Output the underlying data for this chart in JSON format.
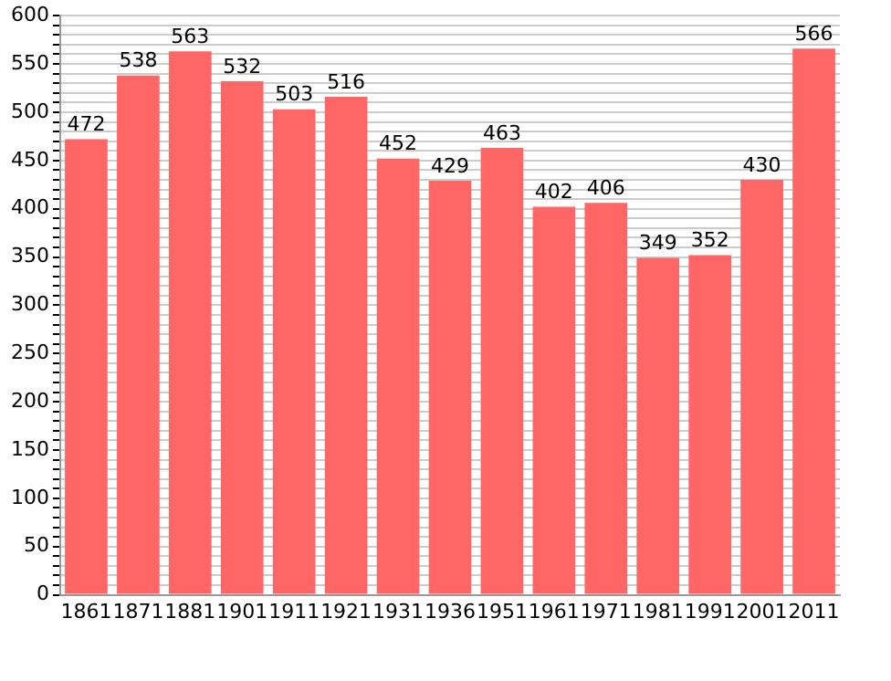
{
  "chart_data": {
    "type": "bar",
    "categories": [
      "1861",
      "1871",
      "1881",
      "1901",
      "1911",
      "1921",
      "1931",
      "1936",
      "1951",
      "1961",
      "1971",
      "1981",
      "1991",
      "2001",
      "2011"
    ],
    "values": [
      472,
      538,
      563,
      532,
      503,
      516,
      452,
      429,
      463,
      402,
      406,
      349,
      352,
      430,
      566
    ],
    "color": "#ff6666",
    "ylim": [
      0,
      600
    ],
    "yticks": [
      0,
      {
        "value": 10,
        "label": null
      },
      {
        "value": 20,
        "label": null
      },
      {
        "value": 30,
        "label": null
      },
      {
        "value": 40,
        "label": null
      },
      50,
      {
        "value": 60,
        "label": null
      },
      {
        "value": 70,
        "label": null
      },
      {
        "value": 80,
        "label": null
      },
      {
        "value": 90,
        "label": null
      },
      100,
      {
        "value": 110,
        "label": null
      },
      {
        "value": 120,
        "label": null
      },
      {
        "value": 130,
        "label": null
      },
      {
        "value": 140,
        "label": null
      },
      150,
      {
        "value": 160,
        "label": null
      },
      {
        "value": 170,
        "label": null
      },
      {
        "value": 180,
        "label": null
      },
      {
        "value": 190,
        "label": null
      },
      200,
      {
        "value": 210,
        "label": null
      },
      {
        "value": 220,
        "label": null
      },
      {
        "value": 230,
        "label": null
      },
      {
        "value": 240,
        "label": null
      },
      250,
      {
        "value": 260,
        "label": null
      },
      {
        "value": 270,
        "label": null
      },
      {
        "value": 280,
        "label": null
      },
      {
        "value": 290,
        "label": null
      },
      300,
      {
        "value": 310,
        "label": null
      },
      {
        "value": 320,
        "label": null
      },
      {
        "value": 330,
        "label": null
      },
      {
        "value": 340,
        "label": null
      },
      350,
      {
        "value": 360,
        "label": null
      },
      {
        "value": 370,
        "label": null
      },
      {
        "value": 380,
        "label": null
      },
      {
        "value": 390,
        "label": null
      },
      400,
      {
        "value": 410,
        "label": null
      },
      {
        "value": 420,
        "label": null
      },
      {
        "value": 430,
        "label": null
      },
      {
        "value": 440,
        "label": null
      },
      450,
      {
        "value": 460,
        "label": null
      },
      {
        "value": 470,
        "label": null
      },
      {
        "value": 480,
        "label": null
      },
      {
        "value": 490,
        "label": null
      },
      500,
      {
        "value": 510,
        "label": null
      },
      {
        "value": 520,
        "label": null
      },
      {
        "value": 530,
        "label": null
      },
      {
        "value": 540,
        "label": null
      },
      550,
      {
        "value": 560,
        "label": null
      },
      {
        "value": 570,
        "label": null
      },
      {
        "value": 580,
        "label": null
      },
      {
        "value": 590,
        "label": null
      },
      600
    ],
    "grid": "y",
    "data_labels": true
  }
}
